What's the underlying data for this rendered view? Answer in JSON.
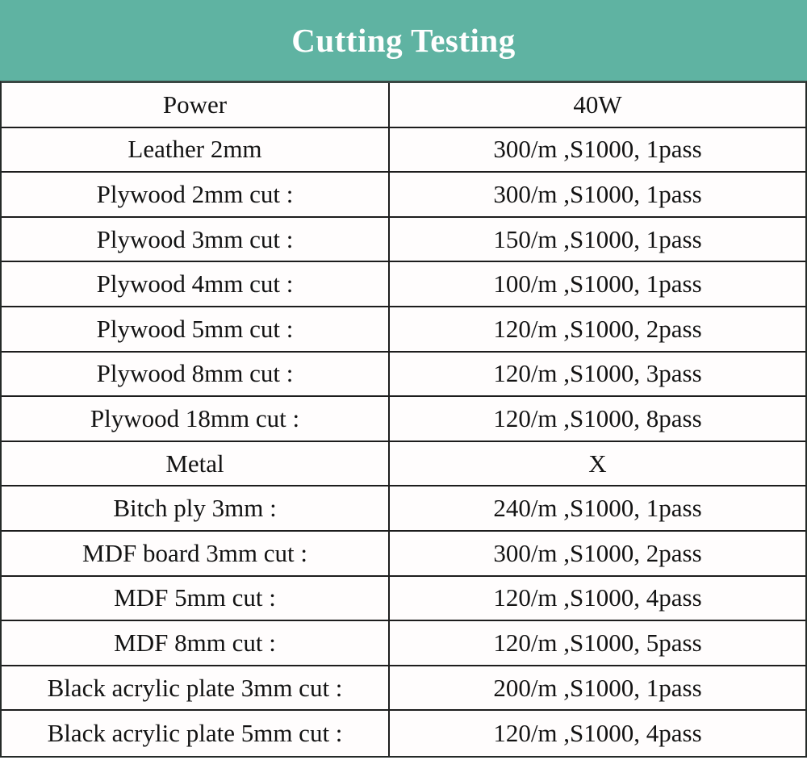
{
  "banner": {
    "title": "Cutting Testing",
    "bg_color": "#5fb3a2",
    "text_color": "#ffffff"
  },
  "table": {
    "border_color": "#1d1d1d",
    "rows": [
      {
        "label": "Power",
        "value": "40W"
      },
      {
        "label": "Leather 2mm",
        "value": "300/m ,S1000, 1pass"
      },
      {
        "label": "Plywood 2mm cut :",
        "value": "300/m ,S1000, 1pass"
      },
      {
        "label": "Plywood 3mm cut :",
        "value": "150/m ,S1000, 1pass"
      },
      {
        "label": "Plywood 4mm cut :",
        "value": "100/m ,S1000, 1pass"
      },
      {
        "label": "Plywood 5mm cut :",
        "value": "120/m ,S1000, 2pass"
      },
      {
        "label": "Plywood 8mm cut :",
        "value": "120/m ,S1000, 3pass"
      },
      {
        "label": "Plywood 18mm cut :",
        "value": "120/m ,S1000, 8pass"
      },
      {
        "label": "Metal",
        "value": "X"
      },
      {
        "label": "Bitch ply 3mm :",
        "value": "240/m ,S1000, 1pass"
      },
      {
        "label": "MDF board 3mm cut :",
        "value": "300/m ,S1000, 2pass"
      },
      {
        "label": "MDF 5mm cut :",
        "value": "120/m ,S1000, 4pass"
      },
      {
        "label": "MDF 8mm cut :",
        "value": "120/m ,S1000, 5pass"
      },
      {
        "label": "Black acrylic plate 3mm cut :",
        "value": "200/m ,S1000, 1pass"
      },
      {
        "label": "Black acrylic plate 5mm cut :",
        "value": "120/m ,S1000, 4pass"
      }
    ]
  }
}
